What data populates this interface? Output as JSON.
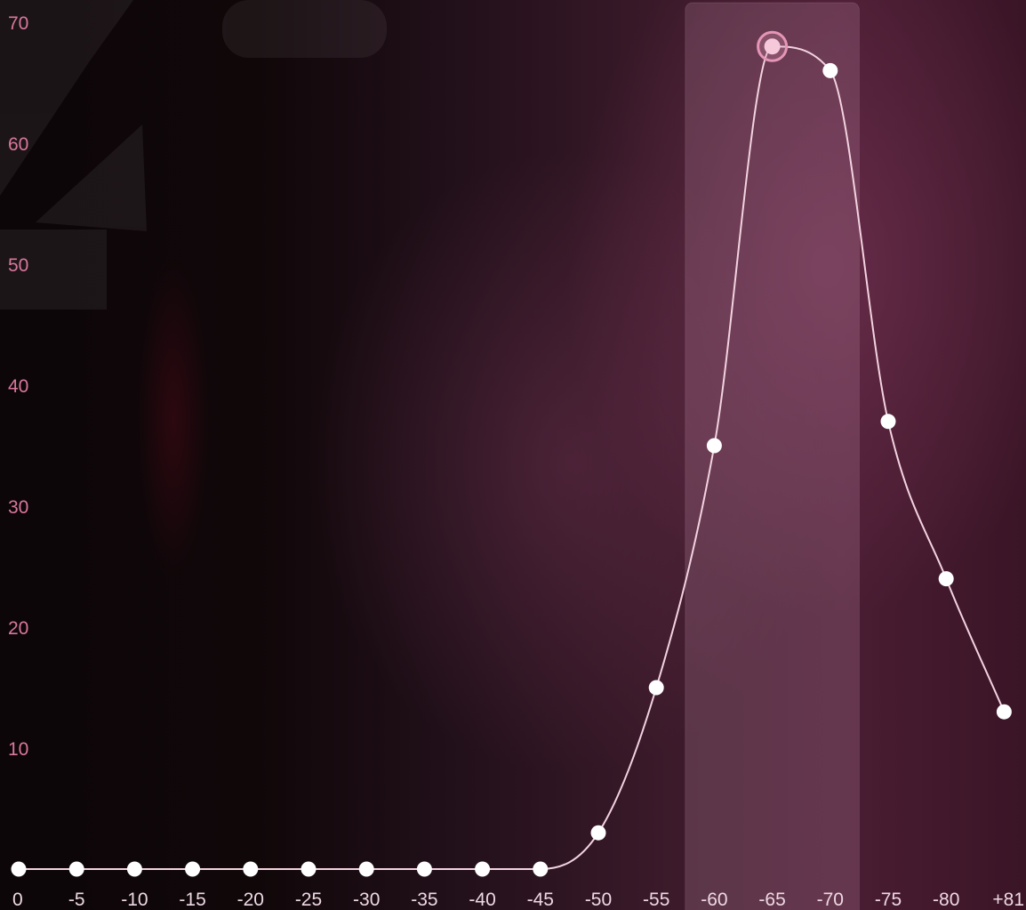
{
  "chart_data": {
    "type": "line",
    "title": "",
    "xlabel": "",
    "ylabel": "",
    "categories": [
      "0",
      "-5",
      "-10",
      "-15",
      "-20",
      "-25",
      "-30",
      "-35",
      "-40",
      "-45",
      "-50",
      "-55",
      "-60",
      "-65",
      "-70",
      "-75",
      "-80",
      "+81"
    ],
    "series": [
      {
        "values": [
          0,
          0,
          0,
          0,
          0,
          0,
          0,
          0,
          0,
          0,
          3,
          15,
          35,
          68,
          66,
          37,
          24,
          13
        ]
      }
    ],
    "ylim": [
      0,
      70
    ],
    "yticks": [
      10,
      20,
      30,
      40,
      50,
      60,
      70
    ],
    "highlight": {
      "from": "-60",
      "to": "-70",
      "peak": "-65"
    },
    "grid": false,
    "legend": "none",
    "colors": {
      "line": "#f3d3e0",
      "point": "#ffffff",
      "peak_ring": "#e596b6",
      "band": "#c897b0",
      "tick_y": "#d9779c",
      "tick_x": "#eed8e3"
    }
  }
}
